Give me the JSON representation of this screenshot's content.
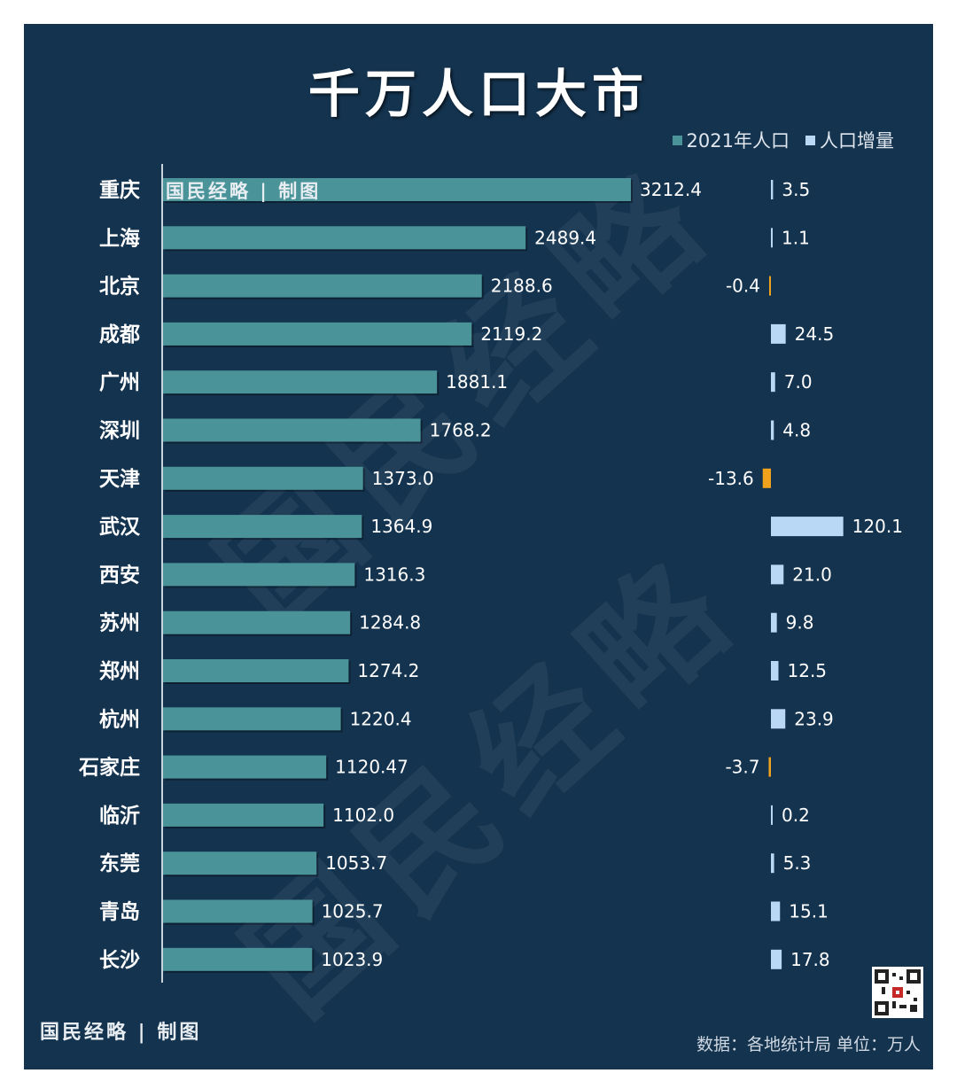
{
  "title": "千万人口大市",
  "watermark": "国民经略",
  "brand": "国民经略 | 制图",
  "source": "数据：各地统计局 单位：万人",
  "colors": {
    "background": "#14334f",
    "population_bar": "#4a9499",
    "increase_bar": "#b9d8f5",
    "decrease_bar": "#f0a21c"
  },
  "chart_data": {
    "type": "bar",
    "orientation": "horizontal",
    "categories": [
      "重庆",
      "上海",
      "北京",
      "成都",
      "广州",
      "深圳",
      "天津",
      "武汉",
      "西安",
      "苏州",
      "郑州",
      "杭州",
      "石家庄",
      "临沂",
      "东莞",
      "青岛",
      "长沙"
    ],
    "series": [
      {
        "name": "2021年人口",
        "values": [
          3212.4,
          2489.4,
          2188.6,
          2119.2,
          1881.1,
          1768.2,
          1373.0,
          1364.9,
          1316.3,
          1284.8,
          1274.2,
          1220.4,
          1120.47,
          1102.0,
          1053.7,
          1025.7,
          1023.9
        ]
      },
      {
        "name": "人口增量",
        "values": [
          3.5,
          1.1,
          -0.4,
          24.5,
          7.0,
          4.8,
          -13.6,
          120.1,
          21.0,
          9.8,
          12.5,
          23.9,
          -3.7,
          0.2,
          5.3,
          15.1,
          17.8
        ]
      }
    ],
    "labels_pop": [
      "3212.4",
      "2489.4",
      "2188.6",
      "2119.2",
      "1881.1",
      "1768.2",
      "1373.0",
      "1364.9",
      "1316.3",
      "1284.8",
      "1274.2",
      "1220.4",
      "1120.47",
      "1102.0",
      "1053.7",
      "1025.7",
      "1023.9"
    ],
    "labels_inc": [
      "3.5",
      "1.1",
      "-0.4",
      "24.5",
      "7.0",
      "4.8",
      "-13.6",
      "120.1",
      "21.0",
      "9.8",
      "12.5",
      "23.9",
      "-3.7",
      "0.2",
      "5.3",
      "15.1",
      "17.8"
    ],
    "legend_position": "top-right",
    "grid": false
  }
}
